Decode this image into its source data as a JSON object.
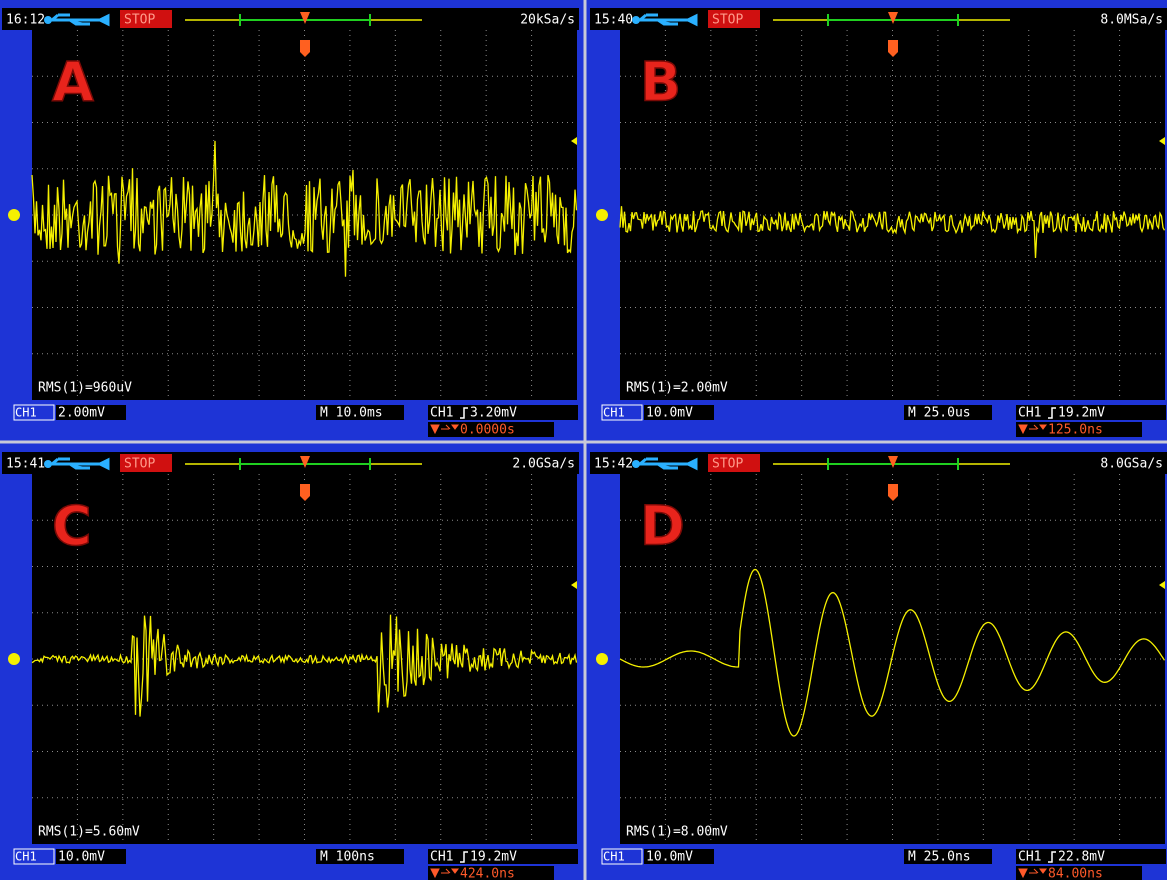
{
  "panels": [
    {
      "time": "16:12",
      "status": "STOP",
      "sample_rate": "20kSa/s",
      "label": "A",
      "rms": "RMS(1)=960uV",
      "channel": "CH1",
      "scale": "2.00mV",
      "timebase": "M 10.0ms",
      "trigger_level": "3.20mV",
      "trigger_offset": "0.0000s"
    },
    {
      "time": "15:40",
      "status": "STOP",
      "sample_rate": "8.0MSa/s",
      "label": "B",
      "rms": "RMS(1)=2.00mV",
      "channel": "CH1",
      "scale": "10.0mV",
      "timebase": "M 25.0us",
      "trigger_level": "19.2mV",
      "trigger_offset": "125.0ns"
    },
    {
      "time": "15:41",
      "status": "STOP",
      "sample_rate": "2.0GSa/s",
      "label": "C",
      "rms": "RMS(1)=5.60mV",
      "channel": "CH1",
      "scale": "10.0mV",
      "timebase": "M 100ns",
      "trigger_level": "19.2mV",
      "trigger_offset": "424.0ns"
    },
    {
      "time": "15:42",
      "status": "STOP",
      "sample_rate": "8.0GSa/s",
      "label": "D",
      "rms": "RMS(1)=8.00mV",
      "channel": "CH1",
      "scale": "10.0mV",
      "timebase": "M 25.0ns",
      "trigger_level": "22.8mV",
      "trigger_offset": "84.00ns"
    }
  ]
}
